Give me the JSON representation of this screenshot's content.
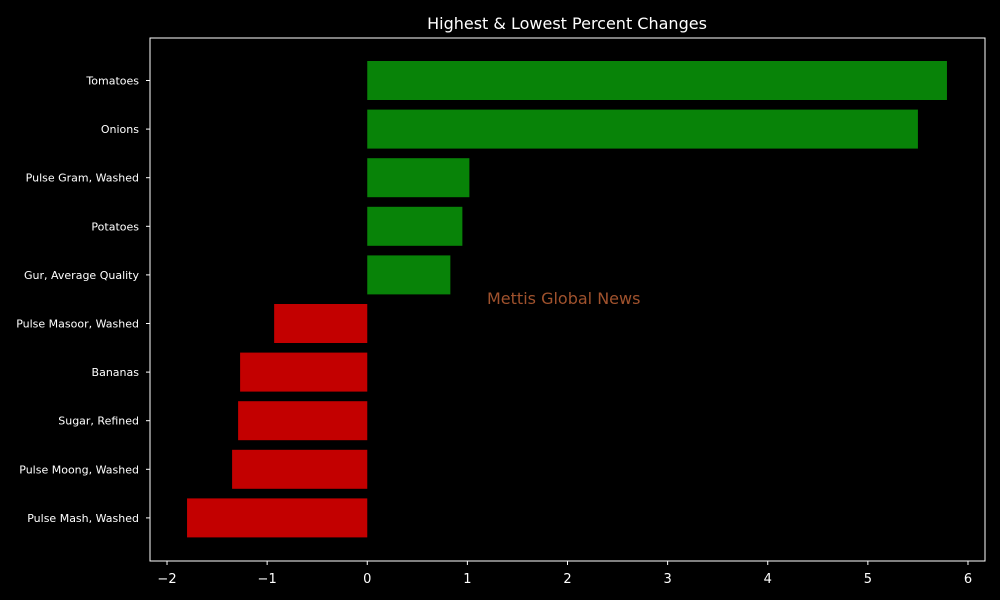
{
  "chart_data": {
    "type": "bar",
    "orientation": "horizontal",
    "title": "Highest & Lowest Percent Changes",
    "xlabel": "",
    "ylabel": "",
    "categories": [
      "Tomatoes",
      "Onions",
      "Pulse Gram, Washed",
      "Potatoes",
      "Gur, Average Quality",
      "Pulse Masoor, Washed",
      "Bananas",
      "Sugar, Refined",
      "Pulse Moong, Washed",
      "Pulse Mash, Washed"
    ],
    "values": [
      5.79,
      5.5,
      1.02,
      0.95,
      0.83,
      -0.93,
      -1.27,
      -1.29,
      -1.35,
      -1.8
    ],
    "xlim": [
      -2.17,
      6.17
    ],
    "xticks": [
      -2,
      -1,
      0,
      1,
      2,
      3,
      4,
      5,
      6
    ],
    "xtick_labels": [
      "−2",
      "−1",
      "0",
      "1",
      "2",
      "3",
      "4",
      "5",
      "6"
    ],
    "grid": false,
    "colors": {
      "positive": "#088308",
      "negative": "#c30000",
      "background": "#000000",
      "axes": "#ffffff",
      "text": "#ffffff",
      "watermark": "#a0522d"
    }
  },
  "watermark": {
    "text": "Mettis Global News"
  }
}
